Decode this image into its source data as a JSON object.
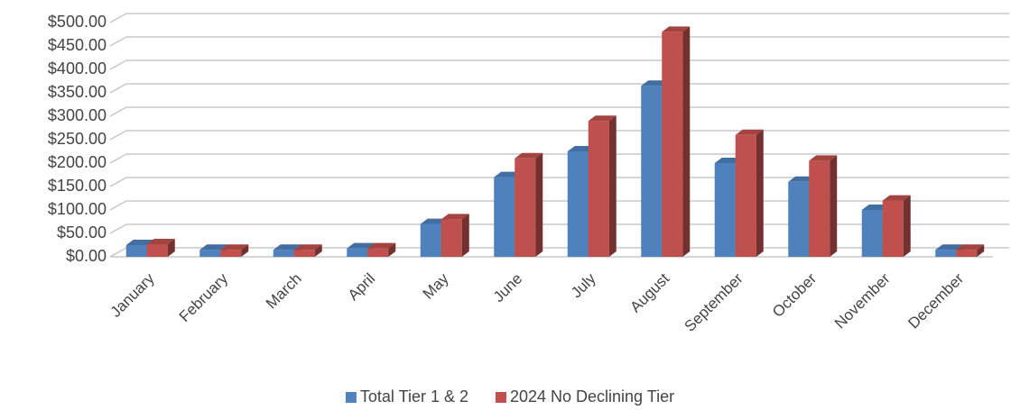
{
  "chart_data": {
    "type": "bar3d",
    "categories": [
      "January",
      "February",
      "March",
      "April",
      "May",
      "June",
      "July",
      "August",
      "September",
      "October",
      "November",
      "December"
    ],
    "series": [
      {
        "name": "Total Tier 1 & 2",
        "color": "#4f81bd",
        "values": [
          25,
          15,
          15,
          18,
          70,
          170,
          225,
          365,
          200,
          160,
          100,
          15
        ]
      },
      {
        "name": "2024 No Declining Tier",
        "color": "#c0504d",
        "values": [
          27,
          15,
          15,
          18,
          80,
          210,
          290,
          480,
          260,
          205,
          120,
          15
        ]
      }
    ],
    "ylim": [
      0,
      500
    ],
    "yticks": [
      {
        "value": 0,
        "label": "$0.00"
      },
      {
        "value": 50,
        "label": "$50.00"
      },
      {
        "value": 100,
        "label": "$100.00"
      },
      {
        "value": 150,
        "label": "$150.00"
      },
      {
        "value": 200,
        "label": "$200.00"
      },
      {
        "value": 250,
        "label": "$250.00"
      },
      {
        "value": 300,
        "label": "$300.00"
      },
      {
        "value": 350,
        "label": "$350.00"
      },
      {
        "value": 400,
        "label": "$400.00"
      },
      {
        "value": 450,
        "label": "$450.00"
      },
      {
        "value": 500,
        "label": "$500.00"
      }
    ],
    "grid": true,
    "legend": "bottom"
  }
}
